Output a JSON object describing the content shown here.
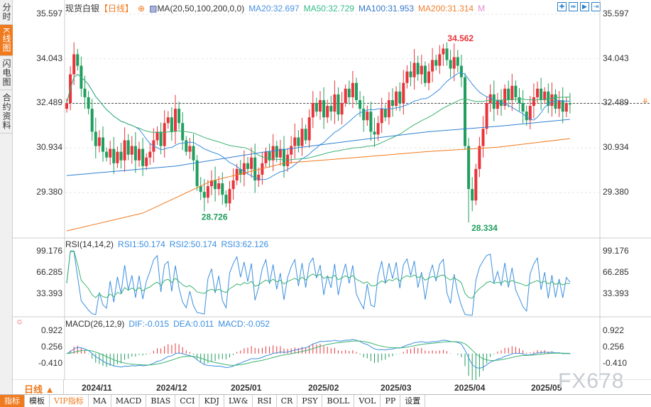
{
  "sidebar": {
    "tabs": [
      {
        "label": "分时"
      },
      {
        "label": "K线图"
      },
      {
        "label": "闪电图"
      },
      {
        "label": "合约资料"
      }
    ],
    "active": 1
  },
  "title": {
    "name": "现货白银",
    "period": "【日线】",
    "ma_label": "MA(20,50,100,200,0,0)",
    "ma20": "MA20:32.697",
    "ma50": "MA50:32.729",
    "ma100": "MA100:31.953",
    "ma200": "MA200:31.314",
    "m": "M"
  },
  "colors": {
    "up": "#e8343a",
    "down": "#1f9e5e",
    "ma20": "#3b8fe0",
    "ma50": "#3cb371",
    "ma100": "#2f7fd0",
    "ma200": "#f07a1e",
    "accent": "#f07a1e"
  },
  "price_axis": [
    "35.597",
    "34.043",
    "32.489",
    "30.934",
    "29.380"
  ],
  "price_axis_values": [
    35.597,
    34.043,
    32.489,
    30.934,
    29.38
  ],
  "annotations": {
    "high": "34.562",
    "low1": "28.726",
    "low2": "28.334"
  },
  "rsi": {
    "label": "RSI(14,14,2)",
    "rsi1": "RSI1:50.174",
    "rsi2": "RSI2:50.174",
    "rsi3": "RSI3:62.126",
    "axis": [
      "99.176",
      "66.285",
      "33.393"
    ]
  },
  "macd": {
    "label": "MACD(26,12,9)",
    "dif": "DIF:-0.015",
    "dea": "DEA:0.011",
    "macd": "MACD:-0.052",
    "axis": [
      "0.922",
      "0.256",
      "-0.410"
    ]
  },
  "dates": [
    "2024/11",
    "2024/12",
    "2025/01",
    "2025/02",
    "2025/03",
    "2025/04",
    "2025/05"
  ],
  "period_selector": "日线 ▲",
  "toolbar": [
    "指标",
    "模板",
    "VIP指标",
    "MA",
    "MACD",
    "BIAS",
    "CCI",
    "KDJ",
    "LW&",
    "RSI",
    "CR",
    "PSY",
    "BOLL",
    "VOL",
    "PP",
    "设置"
  ],
  "watermark": "FX678",
  "chart_data": {
    "type": "candlestick",
    "closes": [
      32.5,
      33.5,
      34.2,
      33.8,
      33.0,
      32.7,
      32.3,
      31.5,
      31.0,
      31.3,
      30.8,
      30.6,
      30.9,
      30.4,
      30.8,
      30.5,
      31.2,
      30.7,
      31.0,
      30.5,
      30.9,
      30.3,
      30.6,
      30.8,
      31.2,
      31.5,
      31.0,
      31.8,
      32.0,
      31.5,
      32.3,
      31.8,
      31.2,
      30.8,
      31.0,
      30.5,
      29.6,
      29.4,
      29.2,
      29.6,
      29.8,
      29.5,
      29.7,
      29.3,
      29.0,
      29.5,
      29.8,
      30.2,
      30.0,
      30.4,
      30.2,
      30.6,
      29.8,
      30.0,
      30.4,
      30.8,
      30.5,
      31.0,
      30.6,
      30.9,
      30.3,
      30.7,
      31.0,
      31.3,
      31.0,
      31.6,
      31.2,
      32.0,
      32.5,
      32.2,
      32.6,
      32.0,
      32.4,
      32.2,
      32.8,
      32.1,
      32.5,
      33.0,
      32.7,
      33.2,
      32.6,
      32.3,
      31.9,
      32.2,
      31.5,
      31.4,
      31.8,
      32.3,
      32.0,
      32.6,
      32.4,
      32.9,
      32.5,
      33.2,
      33.6,
      33.4,
      33.9,
      33.5,
      33.8,
      33.2,
      33.6,
      34.0,
      33.8,
      34.2,
      34.4,
      34.0,
      33.7,
      34.1,
      33.8,
      33.4,
      31.0,
      29.5,
      29.1,
      30.2,
      31.0,
      31.6,
      32.5,
      32.8,
      32.3,
      32.6,
      32.4,
      33.0,
      32.6,
      33.1,
      32.7,
      32.5,
      32.2,
      31.9,
      32.4,
      32.7,
      33.0,
      32.6,
      32.9,
      32.4,
      32.8,
      32.3,
      32.6,
      32.2,
      32.5,
      32.45
    ],
    "ma100": [
      [
        0,
        29.97
      ],
      [
        30,
        30.3
      ],
      [
        55,
        30.8
      ],
      [
        80,
        31.2
      ],
      [
        100,
        31.5
      ],
      [
        120,
        31.7
      ],
      [
        139,
        31.93
      ]
    ],
    "ma200": [
      [
        0,
        28.04
      ],
      [
        21,
        28.66
      ],
      [
        40,
        29.78
      ],
      [
        60,
        30.4
      ],
      [
        80,
        30.6
      ],
      [
        99,
        30.8
      ],
      [
        119,
        30.96
      ],
      [
        139,
        31.26
      ]
    ],
    "high_index": 104,
    "low_indices": [
      38,
      111
    ],
    "last_price": 32.489,
    "ylim": [
      28.0,
      35.9
    ]
  }
}
